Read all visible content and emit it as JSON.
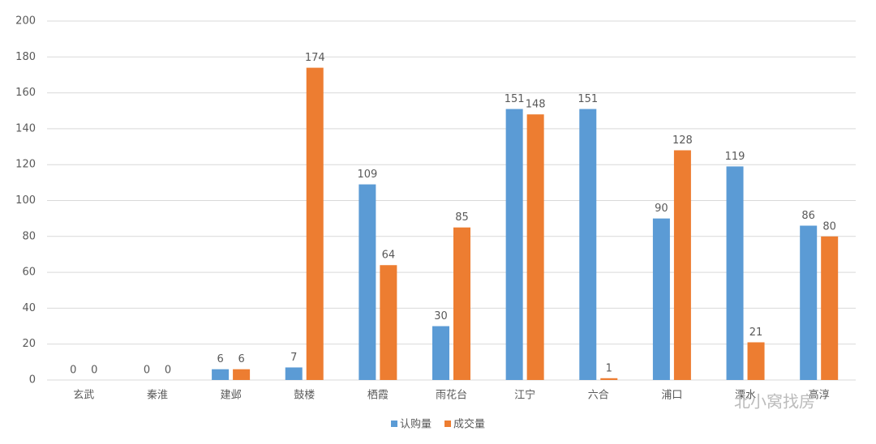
{
  "chart_data": {
    "type": "bar",
    "categories": [
      "玄武",
      "秦淮",
      "建邺",
      "鼓楼",
      "栖霞",
      "雨花台",
      "江宁",
      "六合",
      "浦口",
      "溧水",
      "高淳"
    ],
    "series": [
      {
        "name": "认购量",
        "color": "#5b9bd5",
        "values": [
          0,
          0,
          6,
          7,
          109,
          30,
          151,
          151,
          90,
          119,
          86
        ]
      },
      {
        "name": "成交量",
        "color": "#ed7d31",
        "values": [
          0,
          0,
          6,
          174,
          64,
          85,
          148,
          1,
          128,
          21,
          80
        ]
      }
    ],
    "ylim": [
      0,
      200
    ],
    "yticks": [
      0,
      20,
      40,
      60,
      80,
      100,
      120,
      140,
      160,
      180,
      200
    ],
    "grid": true,
    "legend": "bottom",
    "watermark": "北小窝找房"
  }
}
